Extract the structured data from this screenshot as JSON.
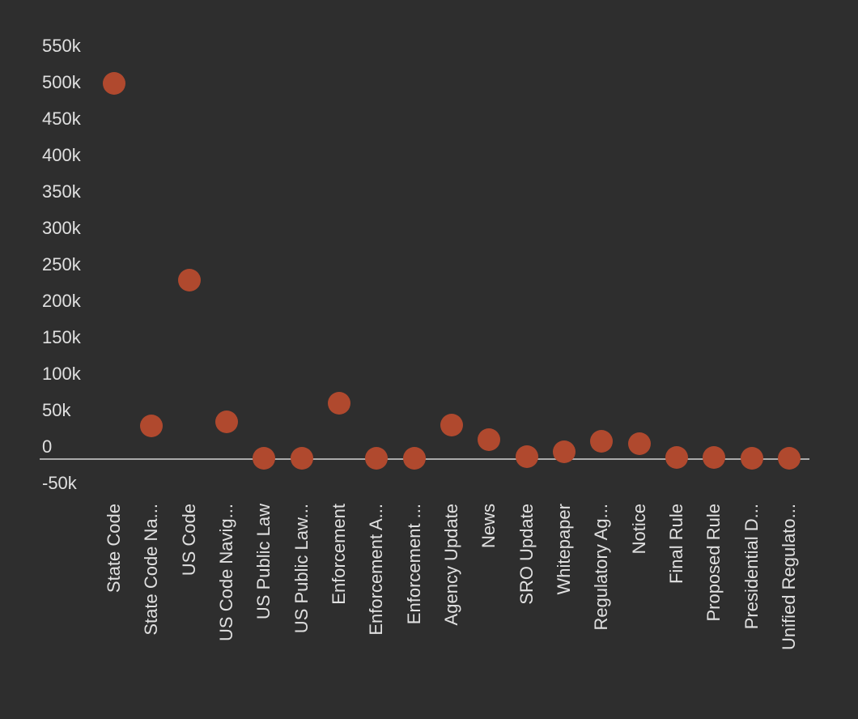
{
  "chart_data": {
    "type": "scatter",
    "title": "",
    "xlabel": "",
    "ylabel": "",
    "legend": "none",
    "grid": false,
    "x_label_rotation_deg": -90,
    "baseline_value": 0,
    "ylim": [
      -50000,
      550000
    ],
    "categories": [
      "State Code",
      "State Code Na...",
      "US Code",
      "US Code Navig...",
      "US Public Law",
      "US Public Law...",
      "Enforcement",
      "Enforcement A...",
      "Enforcement ...",
      "Agency Update",
      "News",
      "SRO Update",
      "Whitepaper",
      "Regulatory Ag...",
      "Notice",
      "Final Rule",
      "Proposed Rule",
      "Presidential D...",
      "Unified Regulato..."
    ],
    "values": [
      515000,
      45000,
      245000,
      51000,
      1000,
      200,
      76000,
      800,
      800,
      46000,
      26000,
      2500,
      9000,
      24000,
      21000,
      1600,
      1600,
      800,
      200
    ],
    "y_ticks": [
      {
        "label": "550k",
        "value": 550000
      },
      {
        "label": "500k",
        "value": 500000
      },
      {
        "label": "450k",
        "value": 450000
      },
      {
        "label": "400k",
        "value": 400000
      },
      {
        "label": "350k",
        "value": 350000
      },
      {
        "label": "300k",
        "value": 300000
      },
      {
        "label": "250k",
        "value": 250000
      },
      {
        "label": "200k",
        "value": 200000
      },
      {
        "label": "150k",
        "value": 150000
      },
      {
        "label": "100k",
        "value": 100000
      },
      {
        "label": "50k",
        "value": 50000
      },
      {
        "label": "0",
        "value": 0
      },
      {
        "label": "-50k",
        "value": -50000
      }
    ]
  },
  "colors": {
    "background": "#2e2e2e",
    "point": "#b0492e",
    "axis_line": "#aaaaaa",
    "text": "#e0e0e0"
  }
}
